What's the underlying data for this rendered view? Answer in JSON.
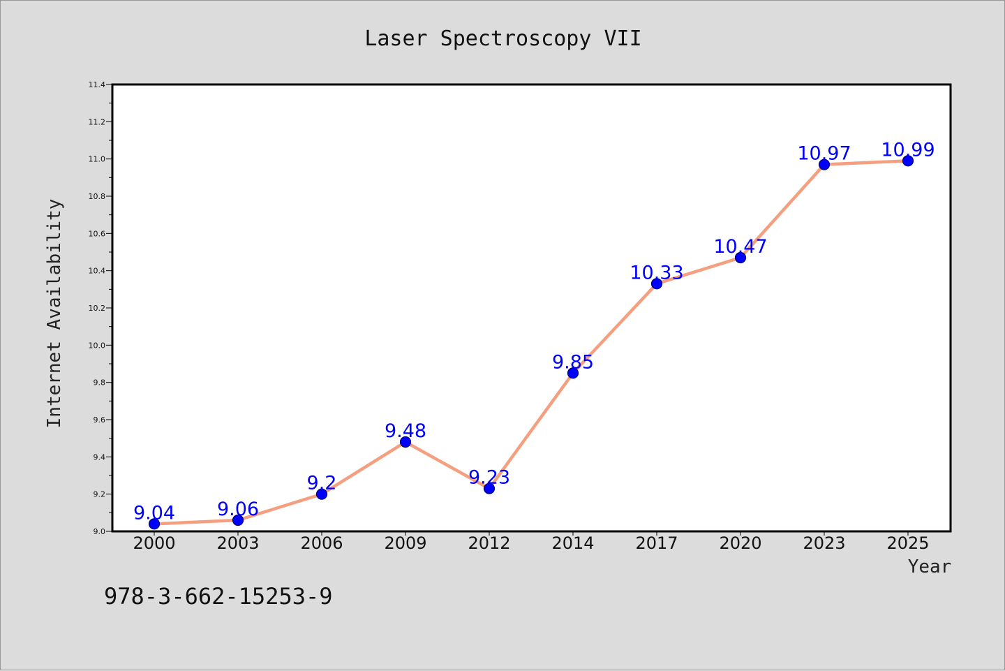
{
  "chart_data": {
    "type": "line",
    "title": "Laser Spectroscopy VII",
    "xlabel": "Year",
    "ylabel": "Internet Availability",
    "categories": [
      "2000",
      "2003",
      "2006",
      "2009",
      "2012",
      "2014",
      "2017",
      "2020",
      "2023",
      "2025"
    ],
    "series": [
      {
        "values": [
          9.04,
          9.06,
          9.2,
          9.48,
          9.23,
          9.85,
          10.33,
          10.47,
          10.97,
          10.99
        ],
        "labels": [
          "9.04",
          "9.06",
          "9.2",
          "9.48",
          "9.23",
          "9.85",
          "10.33",
          "10.47",
          "10.97",
          "10.99"
        ]
      }
    ],
    "ylim": [
      9.0,
      11.4
    ],
    "yticks": [
      "9.0",
      "9.2",
      "9.4",
      "9.6",
      "9.8",
      "10.0",
      "10.2",
      "10.4",
      "10.6",
      "10.8",
      "11.0",
      "11.2",
      "11.4"
    ],
    "grid": false,
    "legend": "none",
    "colors": {
      "line": "#f4a080",
      "marker": "#0000ff",
      "label": "#0000ff",
      "background": "#dcdcdc",
      "plot_background": "#ffffff"
    }
  },
  "footer": {
    "isbn": "978-3-662-15253-9"
  }
}
